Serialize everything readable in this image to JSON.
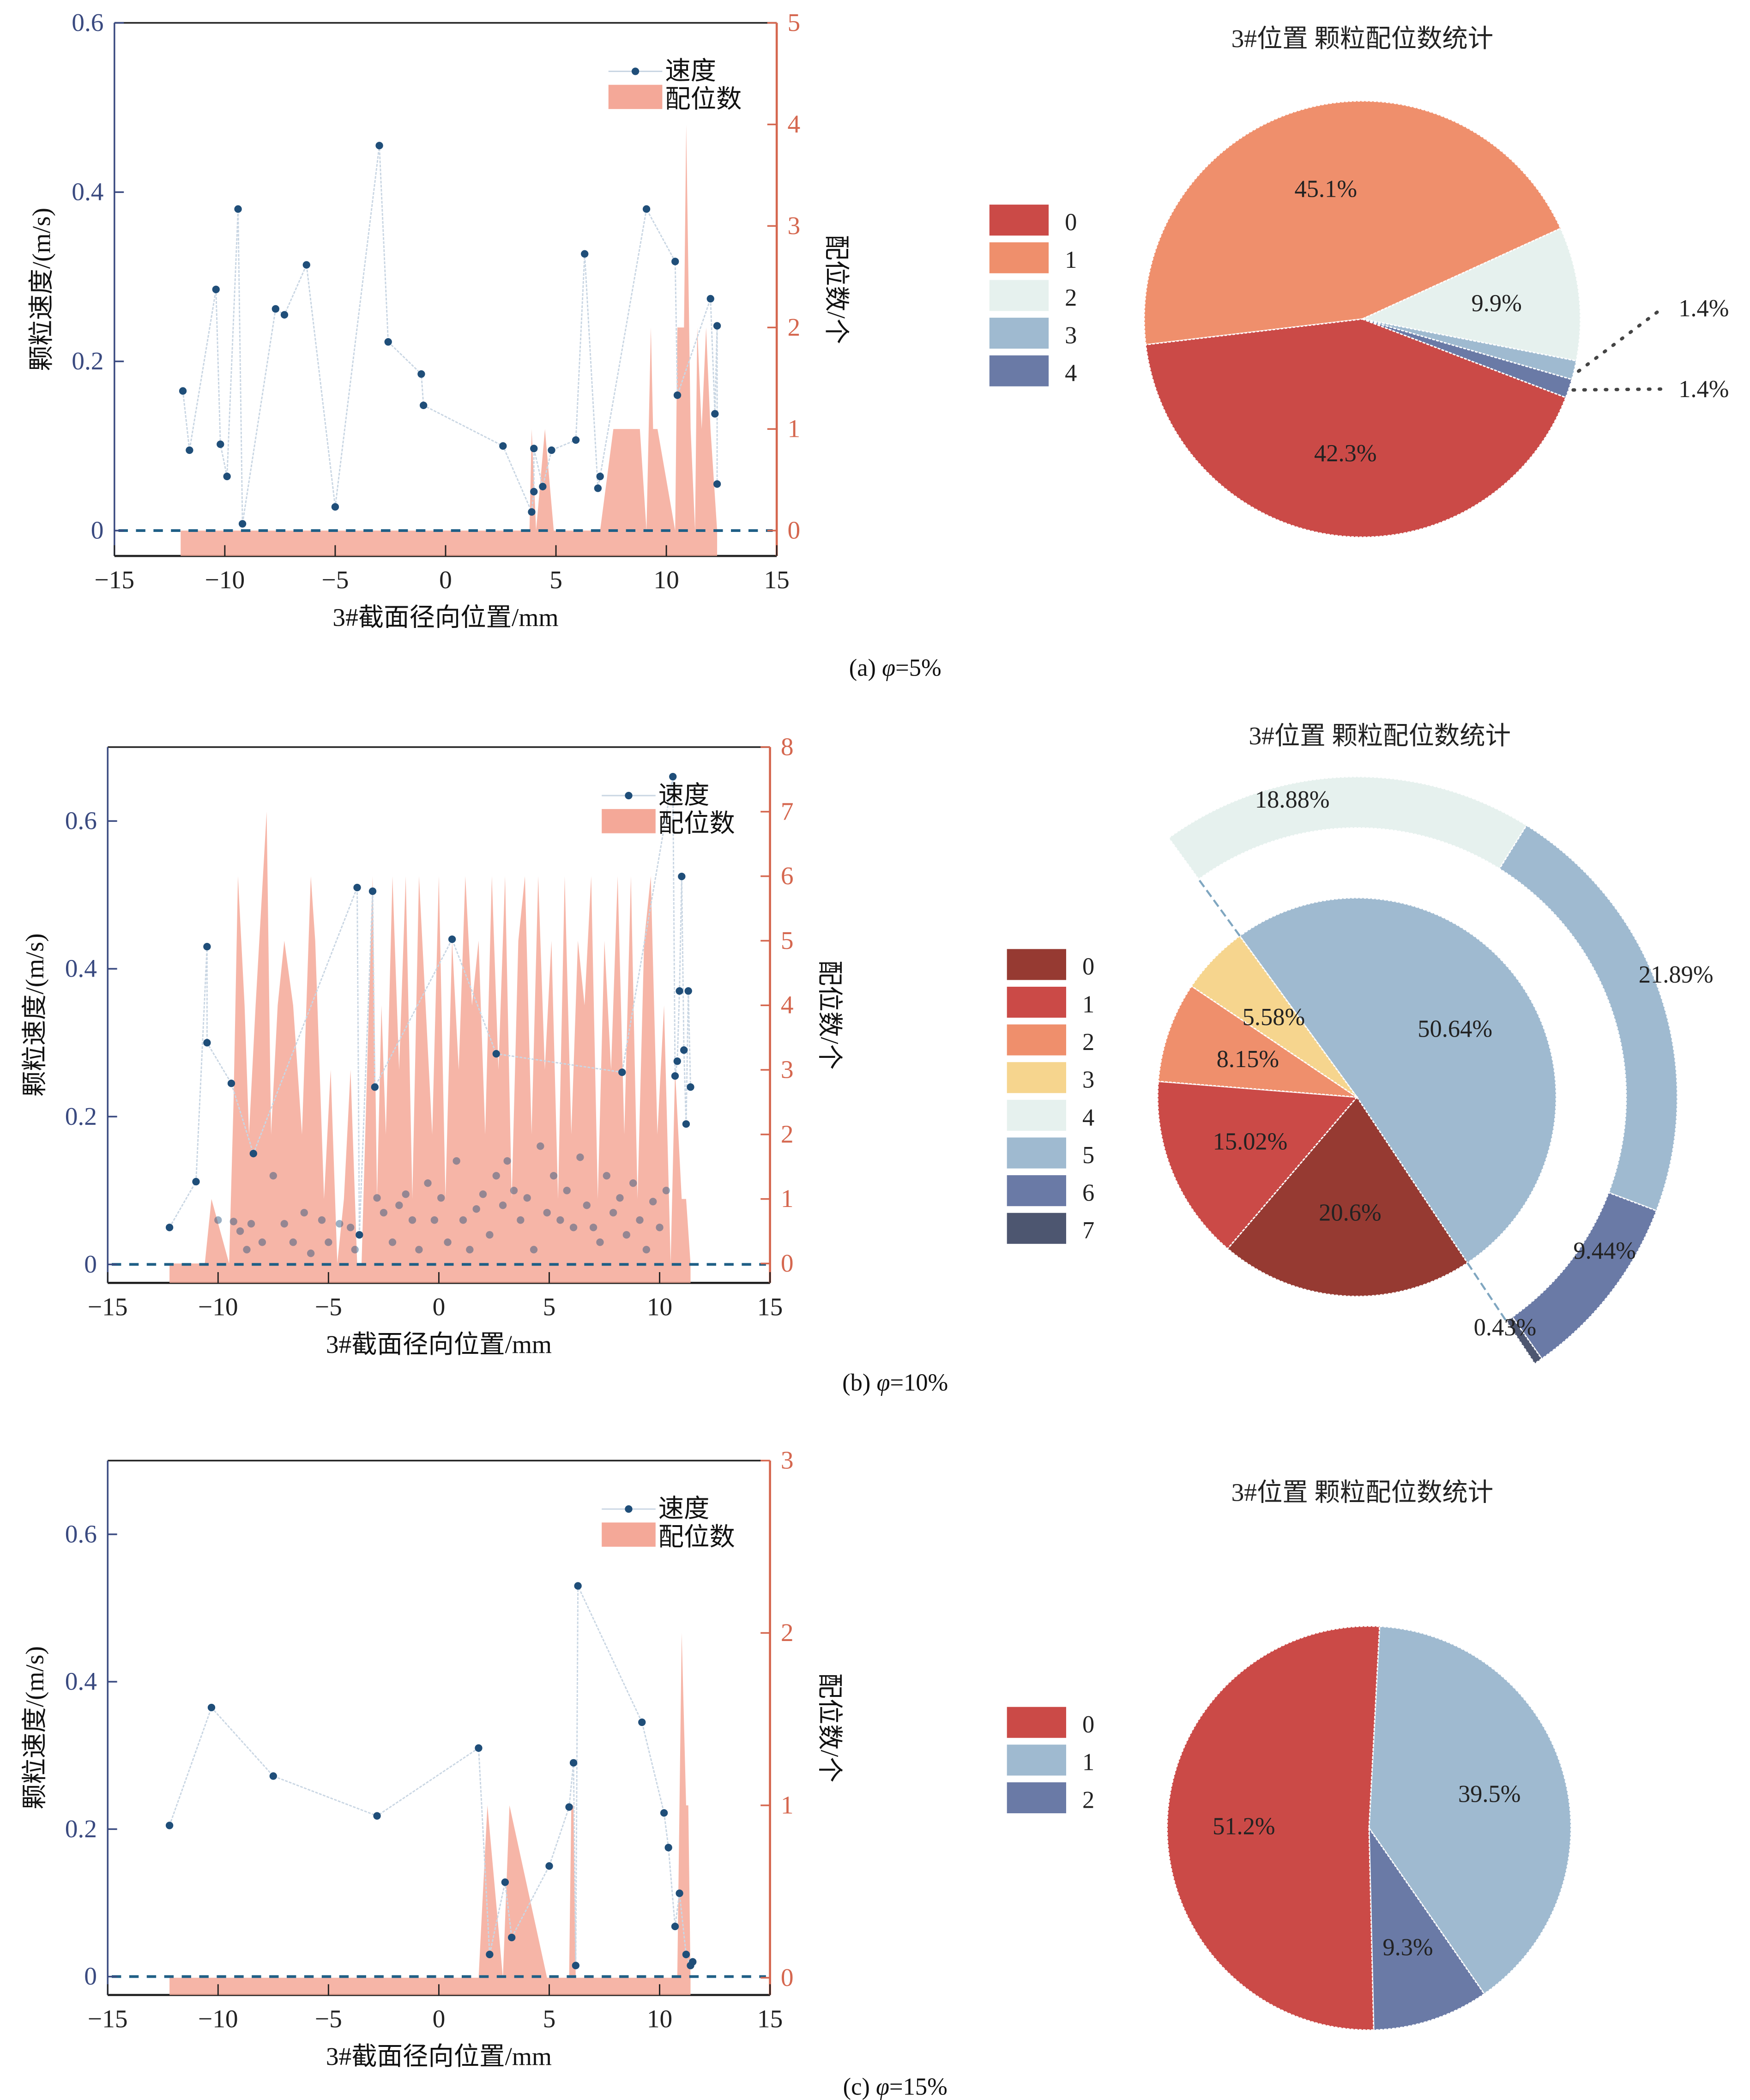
{
  "figure": {
    "panels": [
      {
        "id": "a",
        "caption_prefix": "(a) ",
        "caption_symbol": "φ",
        "caption_value": "=5%"
      },
      {
        "id": "b",
        "caption_prefix": "(b) ",
        "caption_symbol": "φ",
        "caption_value": "=10%"
      },
      {
        "id": "c",
        "caption_prefix": "(c) ",
        "caption_symbol": "φ",
        "caption_value": "=15%"
      }
    ]
  },
  "colors": {
    "left_axis": "#3a4a80",
    "right_axis": "#d5674f",
    "speed_marker": "#1f4e79",
    "speed_line": "#c9d6e3",
    "coord_fill": "#f4a898",
    "zero_line": "#1f5f86"
  },
  "chart_data": [
    {
      "type": "line",
      "panel": "a",
      "title": "",
      "xlabel": "3#截面径向位置/mm",
      "ylabel": "颗粒速度/(m/s)",
      "y2label": "配位数/个",
      "xlim": [
        -15,
        15
      ],
      "ylim": [
        -0.03,
        0.6
      ],
      "y2lim": [
        -0.25,
        5
      ],
      "xticks": [
        "−15",
        "−10",
        "−5",
        "0",
        "5",
        "10",
        "15"
      ],
      "xtick_values": [
        -15,
        -10,
        -5,
        0,
        5,
        10,
        15
      ],
      "yticks": [
        "0",
        "0.2",
        "0.4",
        "0.6"
      ],
      "ytick_values": [
        0,
        0.2,
        0.4,
        0.6
      ],
      "y2ticks": [
        "0",
        "1",
        "2",
        "3",
        "4",
        "5"
      ],
      "y2tick_values": [
        0,
        1,
        2,
        3,
        4,
        5
      ],
      "legend": [
        "速度",
        "配位数"
      ],
      "legend_position": "top-right",
      "series": [
        {
          "name": "速度",
          "kind": "line-marker",
          "x": [
            -11.9,
            -11.6,
            -10.4,
            -10.2,
            -9.9,
            -9.4,
            -9.2,
            -7.7,
            -7.3,
            -6.3,
            -5.0,
            -3.0,
            -2.6,
            -1.1,
            -1.0,
            2.6,
            3.9,
            4.0,
            4.0,
            4.4,
            4.8,
            5.9,
            6.3,
            6.9,
            7.0,
            9.1,
            10.4,
            10.5,
            12.0,
            12.2,
            12.3,
            12.3
          ],
          "y": [
            0.165,
            0.095,
            0.285,
            0.102,
            0.064,
            0.38,
            0.008,
            0.262,
            0.255,
            0.314,
            0.028,
            0.455,
            0.223,
            0.185,
            0.148,
            0.1,
            0.022,
            0.046,
            0.097,
            0.052,
            0.095,
            0.107,
            0.327,
            0.05,
            0.064,
            0.38,
            0.318,
            0.16,
            0.274,
            0.138,
            0.242,
            0.055
          ]
        },
        {
          "name": "配位数",
          "kind": "area",
          "x": [
            -12.0,
            3.8,
            3.9,
            4.1,
            4.5,
            4.9,
            7.0,
            7.6,
            8.8,
            9.1,
            9.3,
            9.4,
            9.6,
            10.4,
            10.5,
            10.8,
            10.9,
            11.1,
            11.3,
            11.4,
            11.6,
            11.8,
            12.0,
            12.3
          ],
          "y": [
            0,
            0,
            1,
            0,
            1,
            0,
            0,
            1,
            1,
            0,
            2,
            1,
            1,
            0,
            2,
            2,
            4,
            1,
            0,
            2,
            1,
            2,
            1,
            0
          ]
        }
      ],
      "reference_line": {
        "y": 0,
        "style": "dashed"
      }
    },
    {
      "type": "pie",
      "panel": "a",
      "title": "3#位置  颗粒配位数统计",
      "legend_position": "left",
      "labels": [
        "0",
        "1",
        "2",
        "3",
        "4"
      ],
      "values": [
        42.3,
        45.1,
        9.9,
        1.4,
        1.4
      ],
      "value_labels": [
        "42.3%",
        "45.1%",
        "9.9%",
        "1.4%",
        "1.4%"
      ],
      "colors": [
        "#cb4a47",
        "#ef8f6c",
        "#e6f1ee",
        "#9fbad0",
        "#6a7aa6"
      ]
    },
    {
      "type": "line",
      "panel": "b",
      "title": "",
      "xlabel": "3#截面径向位置/mm",
      "ylabel": "颗粒速度/(m/s)",
      "y2label": "配位数/个",
      "xlim": [
        -15,
        15
      ],
      "ylim": [
        -0.025,
        0.7
      ],
      "y2lim": [
        -0.3,
        8
      ],
      "xticks": [
        "−15",
        "−10",
        "−5",
        "0",
        "5",
        "10",
        "15"
      ],
      "xtick_values": [
        -15,
        -10,
        -5,
        0,
        5,
        10,
        15
      ],
      "yticks": [
        "0",
        "0.2",
        "0.4",
        "0.6"
      ],
      "ytick_values": [
        0,
        0.2,
        0.4,
        0.6
      ],
      "y2ticks": [
        "0",
        "1",
        "2",
        "3",
        "4",
        "5",
        "6",
        "7",
        "8"
      ],
      "y2tick_values": [
        0,
        1,
        2,
        3,
        4,
        5,
        6,
        7,
        8
      ],
      "legend": [
        "速度",
        "配位数"
      ],
      "legend_position": "top-right",
      "series": [
        {
          "name": "速度",
          "kind": "line-marker",
          "x": [
            -12.2,
            -11.0,
            -10.5,
            -10.5,
            -9.4,
            -8.4,
            -3.7,
            -3.6,
            -3.0,
            -2.9,
            0.6,
            2.6,
            8.3,
            10.6,
            10.7,
            10.8,
            10.9,
            11.0,
            11.1,
            11.2,
            11.3,
            11.4
          ],
          "y": [
            0.05,
            0.112,
            0.43,
            0.3,
            0.245,
            0.15,
            0.51,
            0.04,
            0.505,
            0.24,
            0.44,
            0.285,
            0.26,
            0.66,
            0.255,
            0.275,
            0.37,
            0.525,
            0.29,
            0.19,
            0.37,
            0.24
          ]
        },
        {
          "name": "速度-cluster",
          "kind": "scatter",
          "x": [
            -10.0,
            -9.3,
            -9.0,
            -8.7,
            -8.5,
            -8.0,
            -7.5,
            -7.0,
            -6.6,
            -6.1,
            -5.8,
            -5.3,
            -5.0,
            -4.5,
            -4.0,
            -3.8,
            -2.8,
            -2.5,
            -2.1,
            -1.8,
            -1.5,
            -1.2,
            -0.9,
            -0.5,
            -0.2,
            0.1,
            0.4,
            0.8,
            1.1,
            1.4,
            1.7,
            2.0,
            2.3,
            2.6,
            2.9,
            3.1,
            3.4,
            3.7,
            4.0,
            4.3,
            4.6,
            4.9,
            5.2,
            5.5,
            5.8,
            6.1,
            6.4,
            6.7,
            7.0,
            7.3,
            7.6,
            7.9,
            8.2,
            8.5,
            8.8,
            9.1,
            9.4,
            9.7,
            10.0,
            10.3
          ],
          "y": [
            0.06,
            0.058,
            0.045,
            0.02,
            0.055,
            0.03,
            0.12,
            0.055,
            0.03,
            0.07,
            0.015,
            0.06,
            0.03,
            0.055,
            0.05,
            0.02,
            0.09,
            0.07,
            0.03,
            0.08,
            0.095,
            0.06,
            0.02,
            0.11,
            0.06,
            0.09,
            0.03,
            0.14,
            0.06,
            0.02,
            0.075,
            0.095,
            0.04,
            0.12,
            0.08,
            0.14,
            0.1,
            0.06,
            0.09,
            0.02,
            0.16,
            0.07,
            0.12,
            0.06,
            0.1,
            0.05,
            0.145,
            0.08,
            0.05,
            0.03,
            0.12,
            0.07,
            0.09,
            0.04,
            0.11,
            0.06,
            0.02,
            0.085,
            0.05,
            0.1
          ]
        },
        {
          "name": "配位数",
          "kind": "area",
          "x": [
            -12.2,
            -10.6,
            -10.3,
            -9.5,
            -9.3,
            -9.1,
            -8.8,
            -8.6,
            -8.3,
            -7.8,
            -7.6,
            -7.3,
            -7.0,
            -6.6,
            -6.2,
            -5.8,
            -5.6,
            -5.2,
            -4.9,
            -4.6,
            -4.3,
            -4.0,
            -3.7,
            -3.5,
            -3.0,
            -2.8,
            -2.6,
            -2.4,
            -2.1,
            -1.8,
            -1.5,
            -1.2,
            -0.9,
            -0.6,
            -0.3,
            0.0,
            0.3,
            0.6,
            0.9,
            1.2,
            1.5,
            1.8,
            2.1,
            2.4,
            2.7,
            3.0,
            3.3,
            3.6,
            3.9,
            4.2,
            4.5,
            4.8,
            5.1,
            5.4,
            5.7,
            6.0,
            6.3,
            6.6,
            6.9,
            7.2,
            7.5,
            7.8,
            8.1,
            8.4,
            8.7,
            9.0,
            9.3,
            9.6,
            9.9,
            10.2,
            10.5,
            10.7,
            11.0,
            11.2,
            11.4
          ],
          "y": [
            0,
            0,
            1,
            0,
            2.5,
            6,
            4,
            2,
            4,
            7,
            2,
            4,
            5,
            4,
            2,
            6,
            5,
            1,
            3,
            0,
            1,
            3,
            0,
            0,
            6,
            1,
            4,
            2,
            6,
            3,
            6,
            1,
            6,
            4,
            2,
            6,
            1,
            5,
            3,
            6,
            4,
            5,
            2,
            6,
            3,
            6,
            1,
            5,
            6,
            2,
            6,
            3,
            5,
            1,
            6,
            2,
            5,
            4,
            6,
            1,
            5,
            3,
            6,
            2,
            6,
            1,
            5,
            6,
            2,
            4,
            0,
            3,
            1,
            1,
            0
          ]
        }
      ],
      "reference_line": {
        "y": 0,
        "style": "dashed"
      }
    },
    {
      "type": "pie",
      "panel": "b",
      "title": "3#位置  颗粒配位数统计",
      "legend_position": "left",
      "labels": [
        "0",
        "1",
        "2",
        "3",
        "4",
        "5",
        "6",
        "7"
      ],
      "inner_values": [
        20.6,
        15.02,
        8.15,
        5.58,
        50.64
      ],
      "inner_labels": [
        "20.6%",
        "15.02%",
        "8.15%",
        "5.58%",
        "50.64%"
      ],
      "inner_categories": [
        "0",
        "1",
        "2",
        "3",
        "5"
      ],
      "outer_values": [
        18.88,
        21.89,
        9.44,
        0.43
      ],
      "outer_labels": [
        "18.88%",
        "21.89%",
        "9.44%",
        "0.43%"
      ],
      "outer_categories": [
        "4",
        "5",
        "6",
        "7"
      ],
      "colors": [
        "#963a32",
        "#cb4a47",
        "#ef8f6c",
        "#f6d58e",
        "#e6f1ee",
        "#9fbad0",
        "#6a7aa6",
        "#4d5670"
      ]
    },
    {
      "type": "line",
      "panel": "c",
      "title": "",
      "xlabel": "3#截面径向位置/mm",
      "ylabel": "颗粒速度/(m/s)",
      "y2label": "配位数/个",
      "xlim": [
        -15,
        15
      ],
      "ylim": [
        -0.025,
        0.7
      ],
      "y2lim": [
        -0.1,
        3
      ],
      "xticks": [
        "−15",
        "−10",
        "−5",
        "0",
        "5",
        "10",
        "15"
      ],
      "xtick_values": [
        -15,
        -10,
        -5,
        0,
        5,
        10,
        15
      ],
      "yticks": [
        "0",
        "0.2",
        "0.4",
        "0.6"
      ],
      "ytick_values": [
        0,
        0.2,
        0.4,
        0.6
      ],
      "y2ticks": [
        "0",
        "1",
        "2",
        "3"
      ],
      "y2tick_values": [
        0,
        1,
        2,
        3
      ],
      "legend": [
        "速度",
        "配位数"
      ],
      "legend_position": "top-right",
      "series": [
        {
          "name": "速度",
          "kind": "line-marker",
          "x": [
            -12.2,
            -10.3,
            -7.5,
            -2.8,
            1.8,
            2.3,
            3.0,
            3.3,
            5.0,
            5.9,
            6.1,
            6.2,
            6.3,
            9.2,
            10.2,
            10.4,
            10.7,
            10.9,
            11.2,
            11.4,
            11.5
          ],
          "y": [
            0.205,
            0.365,
            0.272,
            0.218,
            0.31,
            0.03,
            0.128,
            0.053,
            0.15,
            0.23,
            0.29,
            0.015,
            0.53,
            0.345,
            0.222,
            0.175,
            0.068,
            0.113,
            0.03,
            0.015,
            0.02
          ]
        },
        {
          "name": "配位数",
          "kind": "area",
          "x": [
            -12.2,
            1.8,
            2.2,
            2.9,
            3.2,
            4.9,
            5.9,
            6.0,
            6.1,
            6.2,
            10.8,
            11.0,
            11.2,
            11.3,
            11.4
          ],
          "y": [
            0,
            0,
            1,
            0,
            1,
            0,
            0,
            1,
            1,
            0,
            0,
            2,
            1,
            1,
            0
          ]
        }
      ],
      "reference_line": {
        "y": 0,
        "style": "dashed"
      }
    },
    {
      "type": "pie",
      "panel": "c",
      "title": "3#位置  颗粒配位数统计",
      "legend_position": "left",
      "labels": [
        "0",
        "1",
        "2"
      ],
      "values": [
        51.2,
        39.5,
        9.3
      ],
      "value_labels": [
        "51.2%",
        "39.5%",
        "9.3%"
      ],
      "colors": [
        "#cb4a47",
        "#9fbad0",
        "#6a7aa6"
      ]
    }
  ]
}
